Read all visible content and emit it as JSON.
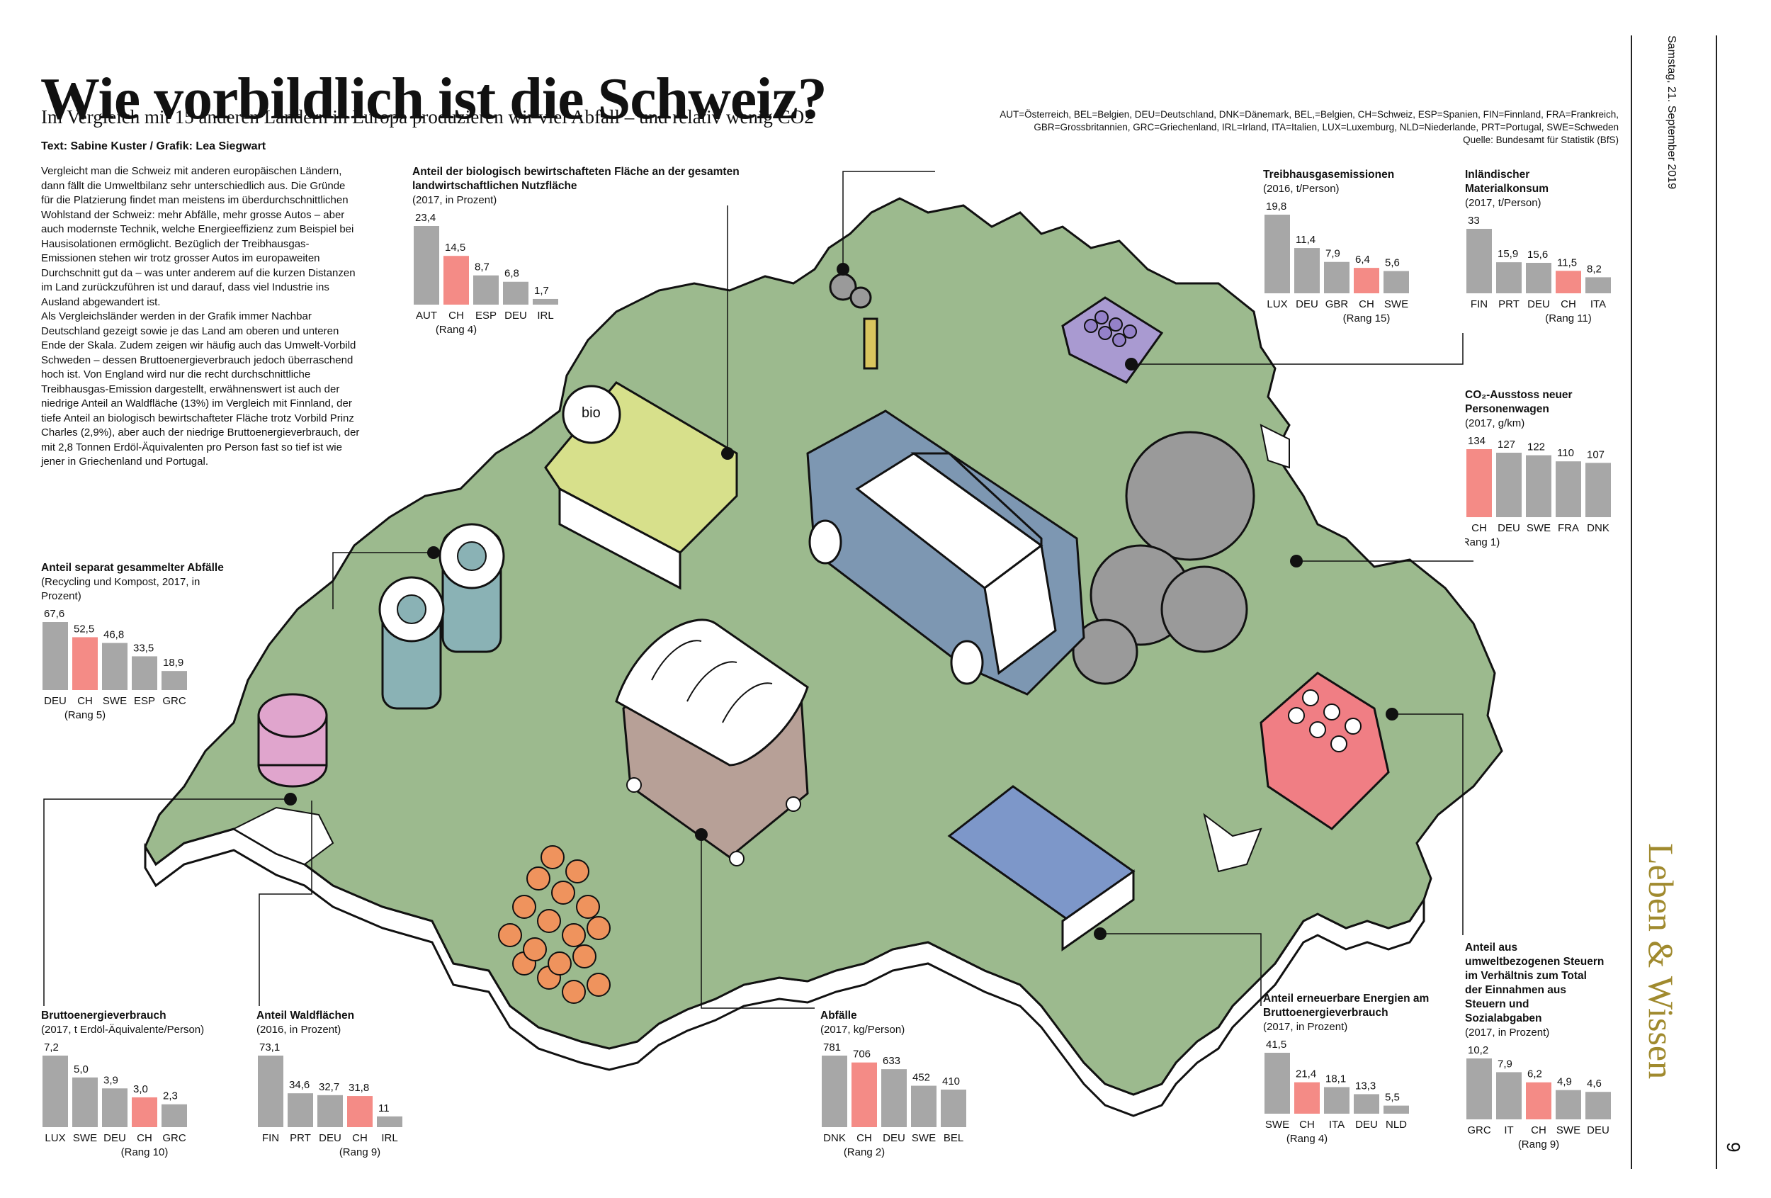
{
  "header": {
    "title": "Wie vorbildlich ist die Schweiz?",
    "subtitle": "Im Vergleich mit 15 anderen Ländern in Europa produzieren wir viel Abfall – und relativ wenig CO2",
    "author": "Text: Sabine Kuster / Grafik: Lea Siegwart"
  },
  "body": {
    "paragraphs": [
      "Vergleicht man die Schweiz mit anderen europäischen Ländern, dann fällt die Umweltbilanz sehr unterschiedlich aus. Die Gründe für die Platzierung findet man meistens im überdurchschnittlichen Wohlstand der Schweiz: mehr Abfälle, mehr grosse Autos – aber auch modernste Technik, welche Energieeffizienz zum Beispiel bei Hausisolationen ermöglicht. Bezüglich der Treibhausgas-Emissionen stehen wir trotz grosser Autos im europaweiten Durchschnitt gut da – was unter anderem auf die kurzen Distanzen im Land zurückzuführen ist und darauf, dass viel Industrie ins Ausland abgewandert ist.",
      "Als Vergleichsländer werden in der Grafik immer Nachbar Deutschland gezeigt sowie je das Land am oberen und unteren Ende der Skala. Zudem zeigen wir häufig auch das Umwelt-Vorbild Schweden – dessen Bruttoenergieverbrauch jedoch überraschend hoch ist. Von England wird nur die recht durchschnittliche Treibhausgas-Emission dargestellt, erwähnenswert ist auch der niedrige Anteil an Waldfläche (13%) im Vergleich mit Finnland, der tiefe Anteil an biologisch bewirtschafteter Fläche trotz Vorbild Prinz Charles (2,9%), aber auch der niedrige Bruttoenergieverbrauch, der mit 2,8 Tonnen Erdöl-Äquivalenten pro Person fast so tief ist wie jener in Griechenland und Portugal."
    ]
  },
  "legend": {
    "line1": "AUT=Österreich, BEL=Belgien, DEU=Deutschland, DNK=Dänemark, BEL,=Belgien, CH=Schweiz, ESP=Spanien, FIN=Finnland, FRA=Frankreich,",
    "line2": "GBR=Grossbritannien, GRC=Griechenland, IRL=Irland, ITA=Italien, LUX=Luxemburg, NLD=Niederlande, PRT=Portugal, SWE=Schweden",
    "source": "Quelle: Bundesamt für Statistik (BfS)"
  },
  "sidebar": {
    "date": "Samstag, 21. September 2019",
    "section": "Leben & Wissen",
    "page": "9"
  },
  "map": {
    "bio_label": "bio"
  },
  "colors": {
    "bar": "#a7a7a7",
    "highlight": "#f48b86",
    "map_land": "#9cba8e",
    "map_outline": "#111111",
    "section_gold": "#a08a2e"
  },
  "chart_data": [
    {
      "id": "bio",
      "type": "bar",
      "title": "Anteil der biologisch bewirtschafteten Fläche an der gesamten landwirtschaftlichen Nutzfläche",
      "subtitle": "(2017, in Prozent)",
      "categories": [
        "AUT",
        "CH",
        "ESP",
        "DEU",
        "IRL"
      ],
      "values": [
        23.4,
        14.5,
        8.7,
        6.8,
        1.7
      ],
      "value_labels": [
        "23,4",
        "14,5",
        "8,7",
        "6,8",
        "1,7"
      ],
      "highlight": "CH",
      "rank_label": "(Rang 4)"
    },
    {
      "id": "treibhaus",
      "type": "bar",
      "title": "Treibhausgasemissionen",
      "subtitle": "(2016, t/Person)",
      "categories": [
        "LUX",
        "DEU",
        "GBR",
        "CH",
        "SWE"
      ],
      "values": [
        19.8,
        11.4,
        7.9,
        6.4,
        5.6
      ],
      "value_labels": [
        "19,8",
        "11,4",
        "7,9",
        "6,4",
        "5,6"
      ],
      "highlight": "CH",
      "rank_label": "(Rang 15)"
    },
    {
      "id": "material",
      "type": "bar",
      "title": "Inländischer Materialkonsum",
      "subtitle": "(2017, t/Person)",
      "categories": [
        "FIN",
        "PRT",
        "DEU",
        "CH",
        "ITA"
      ],
      "values": [
        33,
        15.9,
        15.6,
        11.5,
        8.2
      ],
      "value_labels": [
        "33",
        "15,9",
        "15,6",
        "11,5",
        "8,2"
      ],
      "highlight": "CH",
      "rank_label": "(Rang 11)"
    },
    {
      "id": "co2",
      "type": "bar",
      "title": "CO₂-Ausstoss neuer Personenwagen",
      "subtitle": "(2017, g/km)",
      "categories": [
        "CH",
        "DEU",
        "SWE",
        "FRA",
        "DNK"
      ],
      "values": [
        134,
        127,
        122,
        110,
        107
      ],
      "value_labels": [
        "134",
        "127",
        "122",
        "110",
        "107"
      ],
      "highlight": "CH",
      "rank_label": "(Rang 1)"
    },
    {
      "id": "separat",
      "type": "bar",
      "title": "Anteil separat gesammelter Abfälle",
      "subtitle": "(Recycling und Kompost, 2017, in Prozent)",
      "categories": [
        "DEU",
        "CH",
        "SWE",
        "ESP",
        "GRC"
      ],
      "values": [
        67.6,
        52.5,
        46.8,
        33.5,
        18.9
      ],
      "value_labels": [
        "67,6",
        "52,5",
        "46,8",
        "33,5",
        "18,9"
      ],
      "highlight": "CH",
      "rank_label": "(Rang 5)"
    },
    {
      "id": "brutto",
      "type": "bar",
      "title": "Bruttoenergieverbrauch",
      "subtitle": "(2017, t Erdöl-Äquivalente/Person)",
      "categories": [
        "LUX",
        "SWE",
        "DEU",
        "CH",
        "GRC"
      ],
      "values": [
        7.2,
        5.0,
        3.9,
        3.0,
        2.3
      ],
      "value_labels": [
        "7,2",
        "5,0",
        "3,9",
        "3,0",
        "2,3"
      ],
      "highlight": "CH",
      "rank_label": "(Rang 10)"
    },
    {
      "id": "wald",
      "type": "bar",
      "title": "Anteil Waldflächen",
      "subtitle": "(2016, in Prozent)",
      "categories": [
        "FIN",
        "PRT",
        "DEU",
        "CH",
        "IRL"
      ],
      "values": [
        73.1,
        34.6,
        32.7,
        31.8,
        11
      ],
      "value_labels": [
        "73,1",
        "34,6",
        "32,7",
        "31,8",
        "11"
      ],
      "highlight": "CH",
      "rank_label": "(Rang 9)"
    },
    {
      "id": "abfall",
      "type": "bar",
      "title": "Abfälle",
      "subtitle": "(2017, kg/Person)",
      "categories": [
        "DNK",
        "CH",
        "DEU",
        "SWE",
        "BEL"
      ],
      "values": [
        781,
        706,
        633,
        452,
        410
      ],
      "value_labels": [
        "781",
        "706",
        "633",
        "452",
        "410"
      ],
      "highlight": "CH",
      "rank_label": "(Rang 2)"
    },
    {
      "id": "erneuerbar",
      "type": "bar",
      "title": "Anteil erneuerbare Energien am Bruttoenergieverbrauch",
      "subtitle": "(2017, in Prozent)",
      "categories": [
        "SWE",
        "CH",
        "ITA",
        "DEU",
        "NLD"
      ],
      "values": [
        41.5,
        21.4,
        18.1,
        13.3,
        5.5
      ],
      "value_labels": [
        "41,5",
        "21,4",
        "18,1",
        "13,3",
        "5,5"
      ],
      "highlight": "CH",
      "rank_label": "(Rang 4)"
    },
    {
      "id": "steuern",
      "type": "bar",
      "title": "Anteil aus umweltbezogenen Steuern im Verhältnis zum Total der Einnahmen aus Steuern und Sozialabgaben",
      "subtitle": "(2017, in Prozent)",
      "categories": [
        "GRC",
        "IT",
        "CH",
        "SWE",
        "DEU"
      ],
      "values": [
        10.2,
        7.9,
        6.2,
        4.9,
        4.6
      ],
      "value_labels": [
        "10,2",
        "7,9",
        "6,2",
        "4,9",
        "4,6"
      ],
      "highlight": "CH",
      "rank_label": "(Rang 9)"
    }
  ]
}
